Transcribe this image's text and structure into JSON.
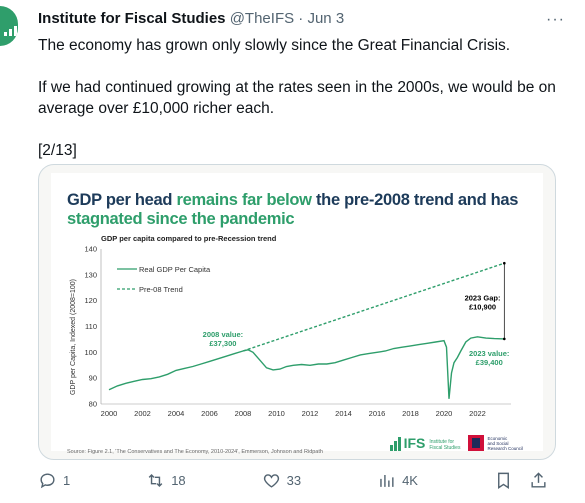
{
  "tweet": {
    "author_name": "Institute for Fiscal Studies",
    "handle": "@TheIFS",
    "separator": "·",
    "date": "Jun 3",
    "more": "···",
    "paragraphs": [
      "The economy has grown only slowly since the Great Financial Crisis.",
      "If we had continued growing at the rates seen in the 2000s, we would be on average over £10,000 richer each.",
      "[2/13]"
    ]
  },
  "card": {
    "headline_parts": [
      {
        "text": "GDP per head ",
        "highlight": false
      },
      {
        "text": "remains far below",
        "highlight": true
      },
      {
        "text": " the pre-2008 trend and has ",
        "highlight": false
      },
      {
        "text": "stagnated since the pandemic",
        "highlight": true
      }
    ],
    "source": "Source: Figure 2.1, 'The Conservatives and The Economy, 2010-2024', Emmerson, Johnson and Ridpath",
    "ifs_logo_text": "IFS",
    "ifs_logo_sub": [
      "Institute for",
      "Fiscal Studies"
    ],
    "esrc_logo_sub": [
      "Economic",
      "and Social",
      "Research Council"
    ]
  },
  "chart_data": {
    "type": "line",
    "title": "GDP per capita compared to pre-Recession trend",
    "ylabel": "GDP per Capita, Indexed (2008=100)",
    "xlabel": "",
    "xlim": [
      2000,
      2024
    ],
    "ylim": [
      80,
      140
    ],
    "x_ticks": [
      "2000",
      "2002",
      "2004",
      "2006",
      "2008",
      "2010",
      "2012",
      "2014",
      "2016",
      "2018",
      "2020",
      "2022"
    ],
    "y_ticks": [
      "80",
      "90",
      "100",
      "110",
      "120",
      "130",
      "140"
    ],
    "grid": false,
    "legend_position": "top-left",
    "colors": {
      "real": "#2e9e6b",
      "trend": "#2e9e6b",
      "label": "#2e9e6b",
      "annot": "#000000"
    },
    "series": [
      {
        "name": "Real GDP Per Capita",
        "style": "solid",
        "points": [
          [
            2000.0,
            85.5
          ],
          [
            2000.5,
            87
          ],
          [
            2001,
            88
          ],
          [
            2001.5,
            88.8
          ],
          [
            2002,
            89.5
          ],
          [
            2002.5,
            89.8
          ],
          [
            2003,
            90.5
          ],
          [
            2003.5,
            91.5
          ],
          [
            2004,
            93
          ],
          [
            2004.5,
            93.8
          ],
          [
            2005,
            94.5
          ],
          [
            2005.5,
            95.5
          ],
          [
            2006,
            96.5
          ],
          [
            2006.5,
            97.5
          ],
          [
            2007,
            98.5
          ],
          [
            2007.5,
            99.5
          ],
          [
            2008,
            100.5
          ],
          [
            2008.3,
            101
          ],
          [
            2008.6,
            100
          ],
          [
            2009,
            97
          ],
          [
            2009.4,
            94
          ],
          [
            2009.8,
            93.2
          ],
          [
            2010.2,
            93.5
          ],
          [
            2010.6,
            94.5
          ],
          [
            2011,
            95
          ],
          [
            2011.5,
            95.3
          ],
          [
            2012,
            95
          ],
          [
            2012.5,
            95.5
          ],
          [
            2013,
            95.5
          ],
          [
            2013.5,
            96
          ],
          [
            2014,
            97
          ],
          [
            2014.5,
            98
          ],
          [
            2015,
            99
          ],
          [
            2015.5,
            99.5
          ],
          [
            2016,
            100
          ],
          [
            2016.5,
            100.5
          ],
          [
            2017,
            101.5
          ],
          [
            2017.5,
            102
          ],
          [
            2018,
            102.5
          ],
          [
            2018.5,
            103
          ],
          [
            2019,
            103.5
          ],
          [
            2019.5,
            104
          ],
          [
            2020,
            104.5
          ],
          [
            2020.15,
            102
          ],
          [
            2020.3,
            82
          ],
          [
            2020.45,
            92
          ],
          [
            2020.6,
            96
          ],
          [
            2020.8,
            98
          ],
          [
            2021,
            100.5
          ],
          [
            2021.3,
            104
          ],
          [
            2021.6,
            105.5
          ],
          [
            2022,
            106
          ],
          [
            2022.5,
            105.5
          ],
          [
            2023,
            105.3
          ],
          [
            2023.6,
            105.2
          ]
        ]
      },
      {
        "name": "Pre-08 Trend",
        "style": "dashed",
        "points": [
          [
            2008,
            100.5
          ],
          [
            2023.6,
            134.5
          ]
        ]
      }
    ],
    "annotations": [
      {
        "lines": [
          "2008 value:",
          "£37,300"
        ],
        "x": 2006.8,
        "y": 106,
        "color": "green"
      },
      {
        "lines": [
          "2023 value:",
          "£39,400"
        ],
        "x": 2022.7,
        "y": 98.5,
        "color": "green"
      },
      {
        "lines": [
          "2023 Gap:",
          "£10,900"
        ],
        "x": 2022.3,
        "y": 120,
        "color": "black"
      }
    ],
    "gap_bracket": {
      "x": 2023.6,
      "y_from": 105.2,
      "y_to": 134.5
    }
  },
  "actions": {
    "reply_count": "1",
    "retweet_count": "18",
    "like_count": "33",
    "views_count": "4K"
  }
}
